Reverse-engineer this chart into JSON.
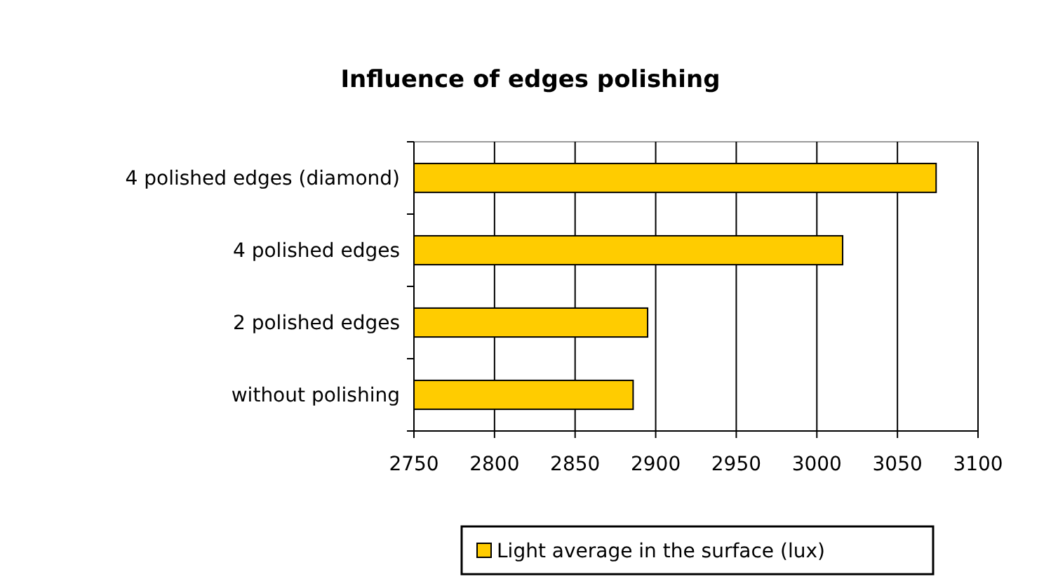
{
  "chart_data": {
    "type": "bar",
    "orientation": "horizontal",
    "title": "Influence of edges polishing",
    "categories": [
      "4 polished edges (diamond)",
      "4 polished edges",
      "2 polished edges",
      "without polishing"
    ],
    "series": [
      {
        "name": "Light average in the surface (lux)",
        "color": "#ffcc00",
        "values": [
          3074,
          3016,
          2895,
          2886
        ]
      }
    ],
    "xlim": [
      2750,
      3100
    ],
    "xticks": [
      2750,
      2800,
      2850,
      2900,
      2950,
      3000,
      3050,
      3100
    ],
    "grid": "x",
    "legend": "bottom"
  }
}
